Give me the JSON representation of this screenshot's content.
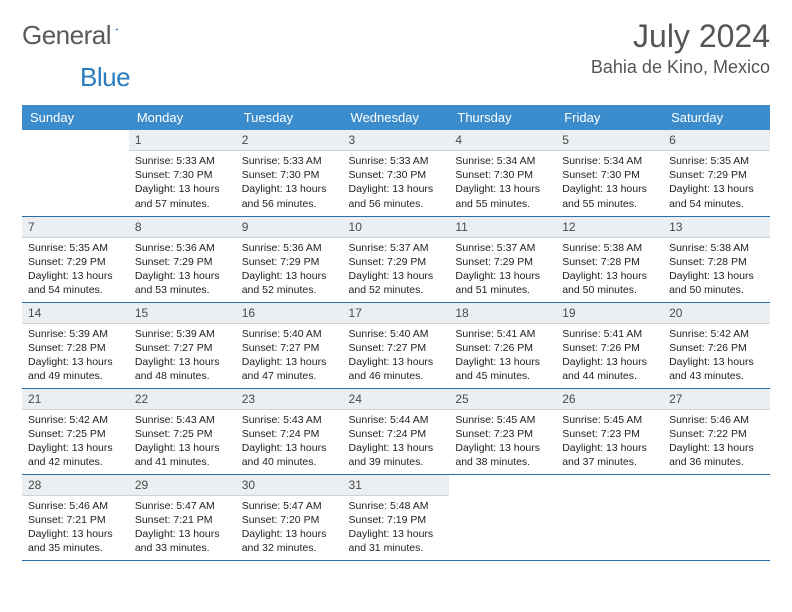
{
  "brand": {
    "general": "General",
    "blue": "Blue"
  },
  "title": "July 2024",
  "location": "Bahia de Kino, Mexico",
  "colors": {
    "header_bg": "#3b8ccc",
    "header_text": "#ffffff",
    "daynum_bg": "#eceff1",
    "border": "#2b6fa8",
    "logo_gray": "#5a5a5a",
    "logo_blue": "#2b7bbf"
  },
  "day_names": [
    "Sunday",
    "Monday",
    "Tuesday",
    "Wednesday",
    "Thursday",
    "Friday",
    "Saturday"
  ],
  "weeks": [
    [
      null,
      {
        "n": "1",
        "sunrise": "5:33 AM",
        "sunset": "7:30 PM",
        "daylight_h": "13",
        "daylight_m": "57"
      },
      {
        "n": "2",
        "sunrise": "5:33 AM",
        "sunset": "7:30 PM",
        "daylight_h": "13",
        "daylight_m": "56"
      },
      {
        "n": "3",
        "sunrise": "5:33 AM",
        "sunset": "7:30 PM",
        "daylight_h": "13",
        "daylight_m": "56"
      },
      {
        "n": "4",
        "sunrise": "5:34 AM",
        "sunset": "7:30 PM",
        "daylight_h": "13",
        "daylight_m": "55"
      },
      {
        "n": "5",
        "sunrise": "5:34 AM",
        "sunset": "7:30 PM",
        "daylight_h": "13",
        "daylight_m": "55"
      },
      {
        "n": "6",
        "sunrise": "5:35 AM",
        "sunset": "7:29 PM",
        "daylight_h": "13",
        "daylight_m": "54"
      }
    ],
    [
      {
        "n": "7",
        "sunrise": "5:35 AM",
        "sunset": "7:29 PM",
        "daylight_h": "13",
        "daylight_m": "54"
      },
      {
        "n": "8",
        "sunrise": "5:36 AM",
        "sunset": "7:29 PM",
        "daylight_h": "13",
        "daylight_m": "53"
      },
      {
        "n": "9",
        "sunrise": "5:36 AM",
        "sunset": "7:29 PM",
        "daylight_h": "13",
        "daylight_m": "52"
      },
      {
        "n": "10",
        "sunrise": "5:37 AM",
        "sunset": "7:29 PM",
        "daylight_h": "13",
        "daylight_m": "52"
      },
      {
        "n": "11",
        "sunrise": "5:37 AM",
        "sunset": "7:29 PM",
        "daylight_h": "13",
        "daylight_m": "51"
      },
      {
        "n": "12",
        "sunrise": "5:38 AM",
        "sunset": "7:28 PM",
        "daylight_h": "13",
        "daylight_m": "50"
      },
      {
        "n": "13",
        "sunrise": "5:38 AM",
        "sunset": "7:28 PM",
        "daylight_h": "13",
        "daylight_m": "50"
      }
    ],
    [
      {
        "n": "14",
        "sunrise": "5:39 AM",
        "sunset": "7:28 PM",
        "daylight_h": "13",
        "daylight_m": "49"
      },
      {
        "n": "15",
        "sunrise": "5:39 AM",
        "sunset": "7:27 PM",
        "daylight_h": "13",
        "daylight_m": "48"
      },
      {
        "n": "16",
        "sunrise": "5:40 AM",
        "sunset": "7:27 PM",
        "daylight_h": "13",
        "daylight_m": "47"
      },
      {
        "n": "17",
        "sunrise": "5:40 AM",
        "sunset": "7:27 PM",
        "daylight_h": "13",
        "daylight_m": "46"
      },
      {
        "n": "18",
        "sunrise": "5:41 AM",
        "sunset": "7:26 PM",
        "daylight_h": "13",
        "daylight_m": "45"
      },
      {
        "n": "19",
        "sunrise": "5:41 AM",
        "sunset": "7:26 PM",
        "daylight_h": "13",
        "daylight_m": "44"
      },
      {
        "n": "20",
        "sunrise": "5:42 AM",
        "sunset": "7:26 PM",
        "daylight_h": "13",
        "daylight_m": "43"
      }
    ],
    [
      {
        "n": "21",
        "sunrise": "5:42 AM",
        "sunset": "7:25 PM",
        "daylight_h": "13",
        "daylight_m": "42"
      },
      {
        "n": "22",
        "sunrise": "5:43 AM",
        "sunset": "7:25 PM",
        "daylight_h": "13",
        "daylight_m": "41"
      },
      {
        "n": "23",
        "sunrise": "5:43 AM",
        "sunset": "7:24 PM",
        "daylight_h": "13",
        "daylight_m": "40"
      },
      {
        "n": "24",
        "sunrise": "5:44 AM",
        "sunset": "7:24 PM",
        "daylight_h": "13",
        "daylight_m": "39"
      },
      {
        "n": "25",
        "sunrise": "5:45 AM",
        "sunset": "7:23 PM",
        "daylight_h": "13",
        "daylight_m": "38"
      },
      {
        "n": "26",
        "sunrise": "5:45 AM",
        "sunset": "7:23 PM",
        "daylight_h": "13",
        "daylight_m": "37"
      },
      {
        "n": "27",
        "sunrise": "5:46 AM",
        "sunset": "7:22 PM",
        "daylight_h": "13",
        "daylight_m": "36"
      }
    ],
    [
      {
        "n": "28",
        "sunrise": "5:46 AM",
        "sunset": "7:21 PM",
        "daylight_h": "13",
        "daylight_m": "35"
      },
      {
        "n": "29",
        "sunrise": "5:47 AM",
        "sunset": "7:21 PM",
        "daylight_h": "13",
        "daylight_m": "33"
      },
      {
        "n": "30",
        "sunrise": "5:47 AM",
        "sunset": "7:20 PM",
        "daylight_h": "13",
        "daylight_m": "32"
      },
      {
        "n": "31",
        "sunrise": "5:48 AM",
        "sunset": "7:19 PM",
        "daylight_h": "13",
        "daylight_m": "31"
      },
      null,
      null,
      null
    ]
  ],
  "labels": {
    "sunrise": "Sunrise:",
    "sunset": "Sunset:",
    "daylight_prefix": "Daylight:",
    "hours_word": "hours",
    "and_word": "and",
    "minutes_word": "minutes."
  }
}
